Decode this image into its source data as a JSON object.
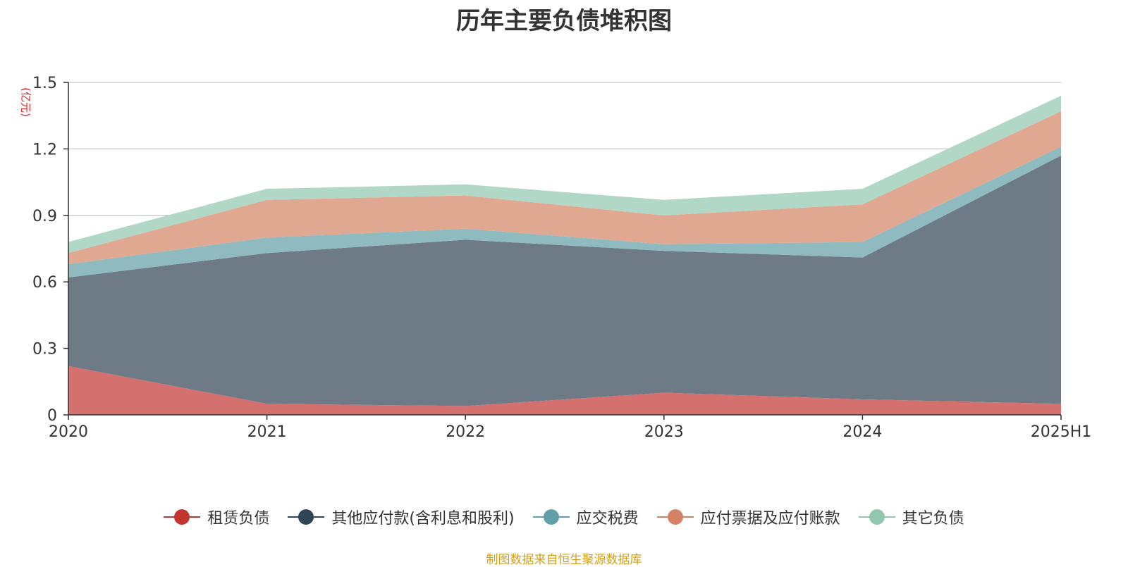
{
  "chart_data": {
    "type": "area",
    "stacked": true,
    "title": "历年主要负债堆积图",
    "unit_label": "(亿元)",
    "categories": [
      "2020",
      "2021",
      "2022",
      "2023",
      "2024",
      "2025H1"
    ],
    "ylim": [
      0,
      1.5
    ],
    "yticks": [
      "0",
      "0.3",
      "0.6",
      "0.9",
      "1.2",
      "1.5"
    ],
    "grid": true,
    "legend_position": "bottom",
    "series": [
      {
        "name": "租赁负债",
        "color": "#c23531",
        "fill": "#d4706e",
        "values": [
          0.22,
          0.05,
          0.04,
          0.1,
          0.07,
          0.05
        ]
      },
      {
        "name": "其他应付款(含利息和股利)",
        "color": "#2f4554",
        "fill": "#6e7b86",
        "values": [
          0.4,
          0.68,
          0.75,
          0.64,
          0.64,
          1.12
        ]
      },
      {
        "name": "应交税费",
        "color": "#61a0a8",
        "fill": "#8fbac0",
        "values": [
          0.06,
          0.07,
          0.05,
          0.03,
          0.07,
          0.04
        ]
      },
      {
        "name": "应付票据及应付账款",
        "color": "#d48265",
        "fill": "#e0a891",
        "values": [
          0.05,
          0.17,
          0.15,
          0.13,
          0.17,
          0.16
        ]
      },
      {
        "name": "其它负债",
        "color": "#91c7ae",
        "fill": "#b1d8c6",
        "values": [
          0.05,
          0.05,
          0.05,
          0.07,
          0.07,
          0.07
        ]
      }
    ]
  },
  "source_note": "制图数据来自恒生聚源数据库"
}
